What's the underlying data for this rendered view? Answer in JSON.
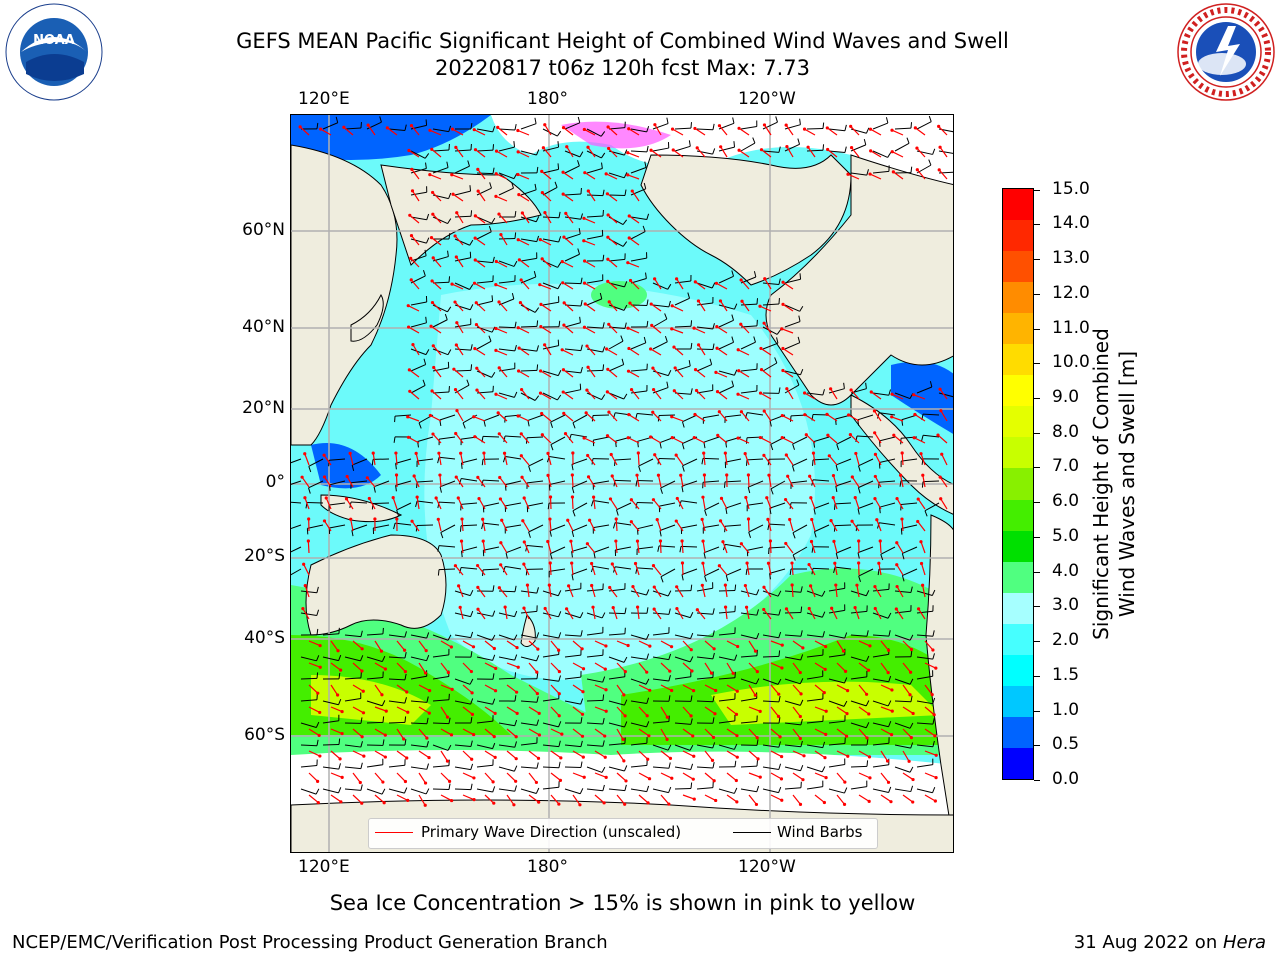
{
  "title": {
    "line1": "GEFS MEAN Pacific Significant Height of Combined Wind Waves and Swell",
    "line2": "20220817 t06z 120h fcst   Max: 7.73"
  },
  "logos": {
    "noaa": {
      "text": "NOAA",
      "ring_text": "NATIONAL OCEANIC AND ATMOSPHERIC ADMINISTRATION · U.S. DEPARTMENT OF COMMERCE"
    },
    "nws": {
      "ring_text": "NATIONAL WEATHER SERVICE"
    }
  },
  "map": {
    "top_lon_labels": [
      "120°E",
      "180°",
      "120°W"
    ],
    "bottom_lon_labels": [
      "120°E",
      "180°",
      "120°W"
    ],
    "lat_labels": [
      "60°N",
      "40°N",
      "20°N",
      "0°",
      "20°S",
      "40°S",
      "60°S"
    ],
    "colors": {
      "land": "#efedde",
      "sea_ice": "#ffffff",
      "wind_barb": "#000000",
      "wave_direction": "#ff0000",
      "gridline": "#b0b0b0"
    },
    "legend": {
      "wave_direction": "Primary Wave Direction (unscaled)",
      "wind_barbs": "Wind Barbs"
    }
  },
  "colorbar": {
    "label_line1": "Significant Height of Combined",
    "label_line2": "Wind Waves and Swell [m]",
    "ticks": [
      "0.0",
      "0.5",
      "1.0",
      "1.5",
      "2.0",
      "3.0",
      "4.0",
      "5.0",
      "6.0",
      "7.0",
      "8.0",
      "9.0",
      "10.0",
      "11.0",
      "12.0",
      "13.0",
      "14.0",
      "15.0"
    ],
    "colors": [
      "#0000ff",
      "#0064ff",
      "#00c8ff",
      "#00ffff",
      "#46ffff",
      "#a6ffff",
      "#50ff80",
      "#00e000",
      "#44ee00",
      "#88f000",
      "#c8ff00",
      "#e4ff00",
      "#ffff00",
      "#ffdc00",
      "#ffb400",
      "#ff8c00",
      "#ff5000",
      "#ff2800",
      "#ff0000"
    ]
  },
  "caption": "Sea Ice Concentration > 15% is shown in pink to yellow",
  "footer": {
    "left": "NCEP/EMC/Verification Post Processing Product Generation Branch",
    "right_prefix": "31 Aug 2022 on ",
    "right_host": "Hera"
  }
}
